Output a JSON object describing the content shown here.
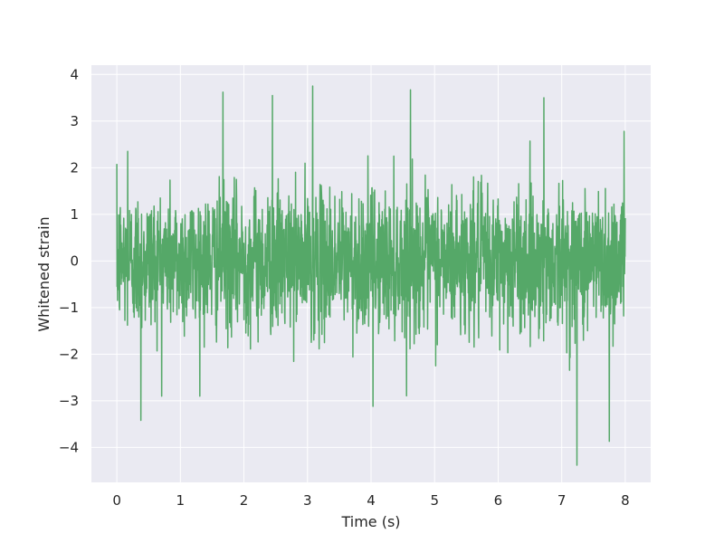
{
  "chart_data": {
    "type": "line",
    "title": "",
    "xlabel": "Time (s)",
    "ylabel": "Whitened strain",
    "xlim": [
      -0.4,
      8.4
    ],
    "ylim": [
      -4.75,
      4.2
    ],
    "xticks": [
      0,
      1,
      2,
      3,
      4,
      5,
      6,
      7,
      8
    ],
    "xtick_labels": [
      "0",
      "1",
      "2",
      "3",
      "4",
      "5",
      "6",
      "7",
      "8"
    ],
    "yticks": [
      4,
      3,
      2,
      1,
      0,
      -1,
      -2,
      -3,
      -4
    ],
    "ytick_labels": [
      "4",
      "3",
      "2",
      "1",
      "0",
      "−1",
      "−2",
      "−3",
      "−4"
    ],
    "grid": true,
    "background": "#eaeaf2",
    "grid_color": "#ffffff",
    "series": [
      {
        "color": "#55a868",
        "x_start": 0,
        "x_end": 8,
        "noise_std": 0.75,
        "extrema": [
          {
            "x": 0.17,
            "y": 2.35
          },
          {
            "x": 0.38,
            "y": -3.42
          },
          {
            "x": 1.67,
            "y": 3.62
          },
          {
            "x": 2.45,
            "y": 3.55
          },
          {
            "x": 3.08,
            "y": 3.75
          },
          {
            "x": 4.03,
            "y": -3.12
          },
          {
            "x": 4.62,
            "y": 3.67
          },
          {
            "x": 6.72,
            "y": 3.5
          },
          {
            "x": 7.24,
            "y": -4.38
          },
          {
            "x": 7.75,
            "y": -3.87
          },
          {
            "x": 7.98,
            "y": 2.78
          }
        ]
      }
    ]
  }
}
